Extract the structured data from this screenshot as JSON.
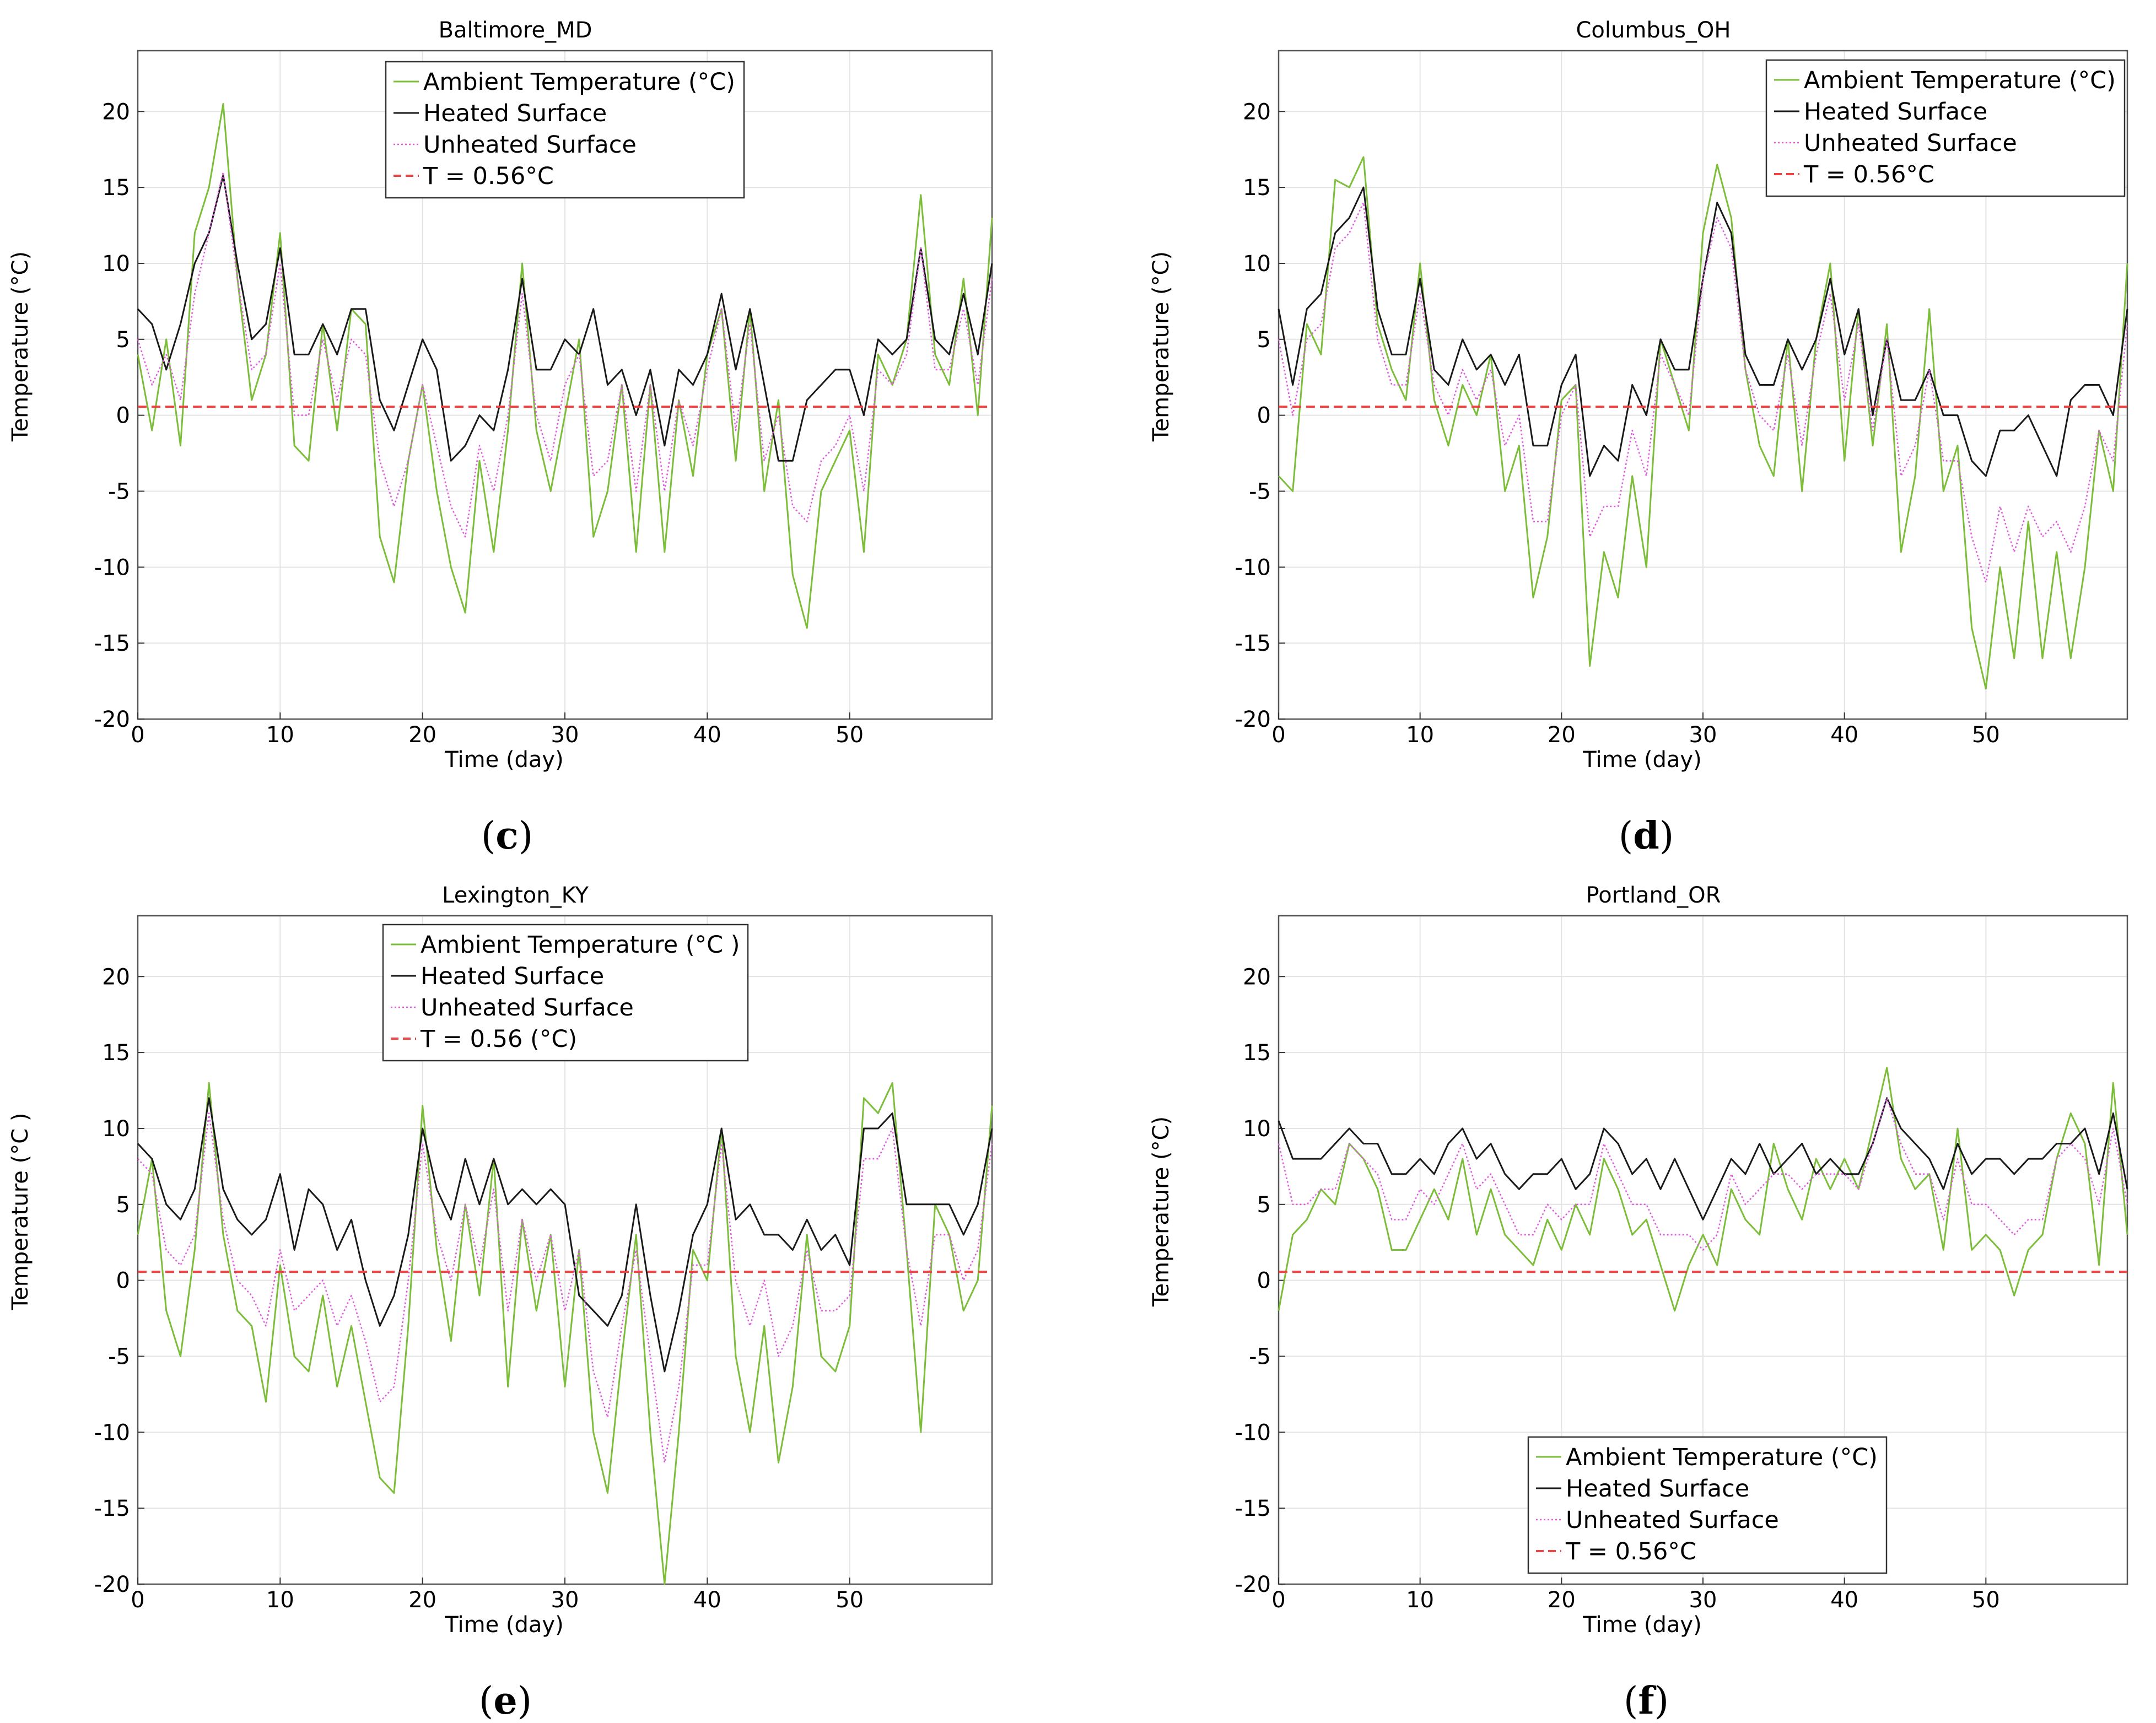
{
  "chart_data": [
    {
      "type": "line",
      "panel": "c",
      "title": "Baltimore_MD",
      "xlabel": "Time (day)",
      "ylabel": "Temperature (°C)",
      "xlim": [
        0,
        60
      ],
      "ylim": [
        -20,
        24
      ],
      "xticks": [
        0,
        10,
        20,
        30,
        40,
        50
      ],
      "yticks": [
        -20,
        -15,
        -10,
        -5,
        0,
        5,
        10,
        15,
        20
      ],
      "legend_position": "top-center",
      "x": [
        0,
        1,
        2,
        3,
        4,
        5,
        6,
        7,
        8,
        9,
        10,
        11,
        12,
        13,
        14,
        15,
        16,
        17,
        18,
        19,
        20,
        21,
        22,
        23,
        24,
        25,
        26,
        27,
        28,
        29,
        30,
        31,
        32,
        33,
        34,
        35,
        36,
        37,
        38,
        39,
        40,
        41,
        42,
        43,
        44,
        45,
        46,
        47,
        48,
        49,
        50,
        51,
        52,
        53,
        54,
        55,
        56,
        57,
        58,
        59,
        60
      ],
      "series": [
        {
          "name": "Ambient Temperature (°C)",
          "color": "#7cbd3a",
          "style": "solid",
          "values": [
            4,
            -1,
            5,
            -2,
            12,
            15,
            20.5,
            9,
            1,
            4,
            12,
            -2,
            -3,
            6,
            -1,
            7,
            6,
            -8,
            -11,
            -3,
            2,
            -5,
            -10,
            -13,
            -3,
            -9,
            -1,
            10,
            -1,
            -5,
            0,
            5,
            -8,
            -5,
            2,
            -9,
            2,
            -9,
            1,
            -4,
            4,
            7,
            -3,
            7,
            -5,
            1,
            -10.5,
            -14,
            -5,
            -3,
            -1,
            -9,
            4,
            2,
            5,
            14.5,
            4,
            2,
            9,
            0,
            13
          ]
        },
        {
          "name": "Heated Surface",
          "color": "#1a1a1a",
          "style": "solid",
          "values": [
            7,
            6,
            3,
            6,
            10,
            12,
            15.8,
            10,
            5,
            6,
            11,
            4,
            4,
            6,
            4,
            7,
            7,
            1,
            -1,
            2,
            5,
            3,
            -3,
            -2,
            0,
            -1,
            3,
            9,
            3,
            3,
            5,
            4,
            7,
            2,
            3,
            0,
            3,
            -2,
            3,
            2,
            4,
            8,
            3,
            7,
            2,
            -3,
            -3,
            1,
            2,
            3,
            3,
            0,
            5,
            4,
            5,
            11,
            5,
            4,
            8,
            4,
            10
          ]
        },
        {
          "name": "Unheated Surface",
          "color": "#e05ae0",
          "style": "dotted",
          "values": [
            5,
            2,
            4,
            1,
            8,
            12,
            16,
            9,
            3,
            4,
            10,
            0,
            0,
            5,
            1,
            5,
            4,
            -3,
            -6,
            -3,
            2,
            -2,
            -6,
            -8,
            -2,
            -5,
            0,
            8,
            0,
            -3,
            2,
            4,
            -4,
            -3,
            2,
            -5,
            2,
            -5,
            1,
            -2,
            3,
            7,
            -1,
            6,
            -3,
            0,
            -6,
            -7,
            -3,
            -2,
            0,
            -5,
            3,
            2,
            4,
            11,
            3,
            3,
            7,
            2,
            9
          ]
        },
        {
          "name": "T = 0.56°C",
          "color": "#ee4444",
          "style": "dashed",
          "constant": 0.56
        }
      ]
    },
    {
      "type": "line",
      "panel": "d",
      "title": "Columbus_OH",
      "xlabel": "Time (day)",
      "ylabel": "Temperature (°C)",
      "xlim": [
        0,
        60
      ],
      "ylim": [
        -20,
        24
      ],
      "xticks": [
        0,
        10,
        20,
        30,
        40,
        50
      ],
      "yticks": [
        -20,
        -15,
        -10,
        -5,
        0,
        5,
        10,
        15,
        20
      ],
      "legend_position": "top-right",
      "x": [
        0,
        1,
        2,
        3,
        4,
        5,
        6,
        7,
        8,
        9,
        10,
        11,
        12,
        13,
        14,
        15,
        16,
        17,
        18,
        19,
        20,
        21,
        22,
        23,
        24,
        25,
        26,
        27,
        28,
        29,
        30,
        31,
        32,
        33,
        34,
        35,
        36,
        37,
        38,
        39,
        40,
        41,
        42,
        43,
        44,
        45,
        46,
        47,
        48,
        49,
        50,
        51,
        52,
        53,
        54,
        55,
        56,
        57,
        58,
        59,
        60
      ],
      "series": [
        {
          "name": "Ambient Temperature (°C)",
          "color": "#7cbd3a",
          "style": "solid",
          "values": [
            -4,
            -5,
            6,
            4,
            15.5,
            15,
            17,
            6,
            3,
            1,
            10,
            1,
            -2,
            2,
            0,
            4,
            -5,
            -2,
            -12,
            -8,
            1,
            2,
            -16.5,
            -9,
            -12,
            -4,
            -10,
            5,
            2,
            -1,
            12,
            16.5,
            13,
            3,
            -2,
            -4,
            5,
            -5,
            5,
            10,
            -3,
            7,
            -2,
            6,
            -9,
            -4,
            7,
            -5,
            -2,
            -14,
            -18,
            -10,
            -16,
            -7,
            -16,
            -9,
            -16,
            -10,
            -1,
            -5,
            10
          ]
        },
        {
          "name": "Heated Surface",
          "color": "#1a1a1a",
          "style": "solid",
          "values": [
            7,
            2,
            7,
            8,
            12,
            13,
            15,
            7,
            4,
            4,
            9,
            3,
            2,
            5,
            3,
            4,
            2,
            4,
            -2,
            -2,
            2,
            4,
            -4,
            -2,
            -3,
            2,
            0,
            5,
            3,
            3,
            9,
            14,
            12,
            4,
            2,
            2,
            5,
            3,
            5,
            9,
            4,
            7,
            0,
            5,
            1,
            1,
            3,
            0,
            0,
            -3,
            -4,
            -1,
            -1,
            0,
            -2,
            -4,
            1,
            2,
            2,
            0,
            7
          ]
        },
        {
          "name": "Unheated Surface",
          "color": "#e05ae0",
          "style": "dotted",
          "values": [
            5,
            0,
            5,
            6,
            11,
            12,
            14,
            5,
            2,
            2,
            8,
            2,
            0,
            3,
            1,
            3,
            -2,
            0,
            -7,
            -7,
            0,
            2,
            -8,
            -6,
            -6,
            -1,
            -4,
            4,
            2,
            0,
            9,
            13,
            11,
            3,
            0,
            -1,
            4,
            -2,
            4,
            8,
            1,
            6,
            -1,
            5,
            -4,
            -2,
            3,
            -3,
            -3,
            -8,
            -11,
            -6,
            -9,
            -6,
            -8,
            -7,
            -9,
            -6,
            -1,
            -3,
            6
          ]
        },
        {
          "name": "T = 0.56°C",
          "color": "#ee4444",
          "style": "dashed",
          "constant": 0.56
        }
      ]
    },
    {
      "type": "line",
      "panel": "e",
      "title": "Lexington_KY",
      "xlabel": "Time (day)",
      "ylabel": "Temperature (°C )",
      "xlim": [
        0,
        60
      ],
      "ylim": [
        -20,
        24
      ],
      "xticks": [
        0,
        10,
        20,
        30,
        40,
        50
      ],
      "yticks": [
        -20,
        -15,
        -10,
        -5,
        0,
        5,
        10,
        15,
        20
      ],
      "legend_position": "top-center",
      "x": [
        0,
        1,
        2,
        3,
        4,
        5,
        6,
        7,
        8,
        9,
        10,
        11,
        12,
        13,
        14,
        15,
        16,
        17,
        18,
        19,
        20,
        21,
        22,
        23,
        24,
        25,
        26,
        27,
        28,
        29,
        30,
        31,
        32,
        33,
        34,
        35,
        36,
        37,
        38,
        39,
        40,
        41,
        42,
        43,
        44,
        45,
        46,
        47,
        48,
        49,
        50,
        51,
        52,
        53,
        54,
        55,
        56,
        57,
        58,
        59,
        60
      ],
      "series": [
        {
          "name": "Ambient Temperature (°C )",
          "color": "#7cbd3a",
          "style": "solid",
          "values": [
            3,
            8,
            -2,
            -5,
            2,
            13,
            3,
            -2,
            -3,
            -8,
            1,
            -5,
            -6,
            -1,
            -7,
            -3,
            -8,
            -13,
            -14,
            -3,
            11.5,
            2,
            -4,
            5,
            -1,
            8,
            -7,
            4,
            -2,
            3,
            -7,
            2,
            -10,
            -14,
            -5,
            3,
            -10,
            -20,
            -10,
            2,
            0,
            10,
            -5,
            -10,
            -3,
            -12,
            -7,
            3,
            -5,
            -6,
            -3,
            12,
            11,
            13,
            2,
            -10,
            5,
            3,
            -2,
            0,
            11.5
          ]
        },
        {
          "name": "Heated Surface",
          "color": "#1a1a1a",
          "style": "solid",
          "values": [
            9,
            8,
            5,
            4,
            6,
            12,
            6,
            4,
            3,
            4,
            7,
            2,
            6,
            5,
            2,
            4,
            0,
            -3,
            -1,
            3,
            10,
            6,
            4,
            8,
            5,
            8,
            5,
            6,
            5,
            6,
            5,
            -1,
            -2,
            -3,
            -1,
            5,
            -1,
            -6,
            -2,
            3,
            5,
            10,
            4,
            5,
            3,
            3,
            2,
            4,
            2,
            3,
            1,
            10,
            10,
            11,
            5,
            5,
            5,
            5,
            3,
            5,
            10
          ]
        },
        {
          "name": "Unheated Surface",
          "color": "#e05ae0",
          "style": "dotted",
          "values": [
            8,
            7,
            2,
            1,
            3,
            11,
            4,
            0,
            -1,
            -3,
            2,
            -2,
            -1,
            0,
            -3,
            -1,
            -4,
            -8,
            -7,
            0,
            9,
            3,
            0,
            5,
            1,
            6,
            -2,
            4,
            0,
            3,
            -2,
            2,
            -6,
            -9,
            -3,
            2,
            -5,
            -12,
            -7,
            1,
            1,
            9,
            0,
            -3,
            0,
            -5,
            -3,
            2,
            -2,
            -2,
            -1,
            8,
            8,
            10,
            2,
            -3,
            3,
            3,
            0,
            2,
            9
          ]
        },
        {
          "name": "T = 0.56 (°C)",
          "color": "#ee4444",
          "style": "dashed",
          "constant": 0.56
        }
      ]
    },
    {
      "type": "line",
      "panel": "f",
      "title": "Portland_OR",
      "xlabel": "Time (day)",
      "ylabel": "Temperature (°C)",
      "xlim": [
        0,
        60
      ],
      "ylim": [
        -20,
        24
      ],
      "xticks": [
        0,
        10,
        20,
        30,
        40,
        50
      ],
      "yticks": [
        -20,
        -15,
        -10,
        -5,
        0,
        5,
        10,
        15,
        20
      ],
      "legend_position": "bottom-center",
      "x": [
        0,
        1,
        2,
        3,
        4,
        5,
        6,
        7,
        8,
        9,
        10,
        11,
        12,
        13,
        14,
        15,
        16,
        17,
        18,
        19,
        20,
        21,
        22,
        23,
        24,
        25,
        26,
        27,
        28,
        29,
        30,
        31,
        32,
        33,
        34,
        35,
        36,
        37,
        38,
        39,
        40,
        41,
        42,
        43,
        44,
        45,
        46,
        47,
        48,
        49,
        50,
        51,
        52,
        53,
        54,
        55,
        56,
        57,
        58,
        59,
        60
      ],
      "series": [
        {
          "name": "Ambient Temperature (°C)",
          "color": "#7cbd3a",
          "style": "solid",
          "values": [
            -2,
            3,
            4,
            6,
            5,
            9,
            8,
            6,
            2,
            2,
            4,
            6,
            4,
            8,
            3,
            6,
            3,
            2,
            1,
            4,
            2,
            5,
            3,
            8,
            6,
            3,
            4,
            1,
            -2,
            1,
            3,
            1,
            6,
            4,
            3,
            9,
            6,
            4,
            8,
            6,
            8,
            6,
            10,
            14,
            8,
            6,
            7,
            2,
            10,
            2,
            3,
            2,
            -1,
            2,
            3,
            8,
            11,
            9,
            1,
            13,
            3
          ]
        },
        {
          "name": "Heated Surface",
          "color": "#1a1a1a",
          "style": "solid",
          "values": [
            10.5,
            8,
            8,
            8,
            9,
            10,
            9,
            9,
            7,
            7,
            8,
            7,
            9,
            10,
            8,
            9,
            7,
            6,
            7,
            7,
            8,
            6,
            7,
            10,
            9,
            7,
            8,
            6,
            8,
            6,
            4,
            6,
            8,
            7,
            9,
            7,
            8,
            9,
            7,
            8,
            7,
            7,
            9,
            12,
            10,
            9,
            8,
            6,
            9,
            7,
            8,
            8,
            7,
            8,
            8,
            9,
            9,
            10,
            7,
            11,
            6
          ]
        },
        {
          "name": "Unheated Surface",
          "color": "#e05ae0",
          "style": "dotted",
          "values": [
            9,
            5,
            5,
            6,
            6,
            9,
            8,
            7,
            4,
            4,
            6,
            5,
            7,
            9,
            6,
            7,
            5,
            3,
            3,
            5,
            4,
            5,
            5,
            9,
            7,
            5,
            5,
            3,
            3,
            3,
            2,
            3,
            7,
            5,
            6,
            7,
            7,
            6,
            7,
            7,
            7,
            6,
            9,
            12,
            9,
            7,
            7,
            4,
            8,
            5,
            5,
            4,
            3,
            4,
            4,
            8,
            9,
            8,
            5,
            10,
            5
          ]
        },
        {
          "name": "T = 0.56°C",
          "color": "#ee4444",
          "style": "dashed",
          "constant": 0.56
        }
      ]
    }
  ]
}
